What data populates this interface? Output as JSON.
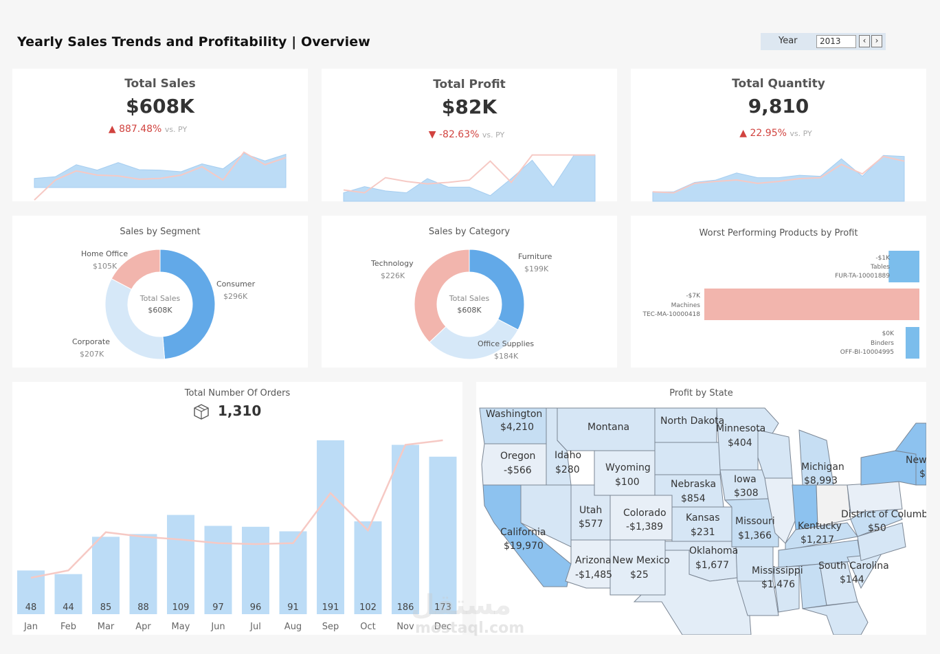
{
  "header": {
    "title": "Yearly Sales Trends and Profitability | Overview",
    "year_label": "Year",
    "year_value": "2013",
    "prev_icon": "chevron-left-icon",
    "next_icon": "chevron-right-icon"
  },
  "kpis": [
    {
      "title": "Total Sales",
      "value": "$608K",
      "arrow": "▲",
      "delta": "887.48%",
      "vs": "vs. PY",
      "area": [
        0.22,
        0.26,
        0.55,
        0.42,
        0.6,
        0.43,
        0.42,
        0.38,
        0.57,
        0.45,
        0.82,
        0.64,
        0.8
      ],
      "line": [
        -0.3,
        0.18,
        0.4,
        0.3,
        0.28,
        0.2,
        0.22,
        0.3,
        0.5,
        0.18,
        0.85,
        0.55,
        0.72
      ]
    },
    {
      "title": "Total Profit",
      "value": "$82K",
      "arrow": "▼",
      "delta": "-82.63%",
      "vs": "vs. PY",
      "area": [
        0.18,
        0.31,
        0.22,
        0.18,
        0.48,
        0.3,
        0.3,
        0.12,
        0.48,
        0.87,
        0.3,
        0.98,
        0.98
      ],
      "line": [
        0.24,
        0.18,
        0.5,
        0.42,
        0.37,
        0.4,
        0.45,
        0.85,
        0.4,
        0.98,
        0.98,
        0.98,
        0.98
      ]
    },
    {
      "title": "Total Quantity",
      "value": "9,810",
      "arrow": "▲",
      "delta": "22.95%",
      "vs": "vs. PY",
      "area": [
        0.2,
        0.2,
        0.4,
        0.45,
        0.6,
        0.5,
        0.5,
        0.55,
        0.53,
        0.9,
        0.53,
        0.97,
        0.95
      ],
      "line": [
        0.2,
        0.18,
        0.38,
        0.42,
        0.45,
        0.38,
        0.42,
        0.48,
        0.5,
        0.78,
        0.58,
        0.95,
        0.85
      ]
    }
  ],
  "segment_chart": {
    "title": "Sales by Segment",
    "center_label": "Total Sales",
    "center_value": "$608K",
    "slices": [
      {
        "name": "Consumer",
        "value": "$296K",
        "num": 296,
        "color": "#62a9e8"
      },
      {
        "name": "Corporate",
        "value": "$207K",
        "num": 207,
        "color": "#d6e8f8"
      },
      {
        "name": "Home Office",
        "value": "$105K",
        "num": 105,
        "color": "#f2b5ad"
      }
    ]
  },
  "category_chart": {
    "title": "Sales by Category",
    "center_label": "Total Sales",
    "center_value": "$608K",
    "slices": [
      {
        "name": "Furniture",
        "value": "$199K",
        "num": 199,
        "color": "#62a9e8"
      },
      {
        "name": "Office Supplies",
        "value": "$184K",
        "num": 184,
        "color": "#d6e8f8"
      },
      {
        "name": "Technology",
        "value": "$226K",
        "num": 226,
        "color": "#f2b5ad"
      }
    ]
  },
  "worst_products": {
    "title": "Worst Performing Products by Profit",
    "items": [
      {
        "profit": "-$1K",
        "name": "Tables",
        "id": "FUR-TA-10001889",
        "num": -1,
        "color": "#7bbdec"
      },
      {
        "profit": "-$7K",
        "name": "Machines",
        "id": "TEC-MA-10000418",
        "num": -7,
        "color": "#f2b5ad"
      },
      {
        "profit": "$0K",
        "name": "Binders",
        "id": "OFF-BI-10004995",
        "num": 0,
        "color": "#7bbdec"
      }
    ]
  },
  "orders": {
    "title": "Total Number Of Orders",
    "total": "1,310",
    "icon": "box-icon"
  },
  "chart_data": {
    "type": "bar",
    "title": "Total Number Of Orders",
    "categories": [
      "Jan",
      "Feb",
      "Mar",
      "Apr",
      "May",
      "Jun",
      "Jul",
      "Aug",
      "Sep",
      "Oct",
      "Nov",
      "Dec"
    ],
    "series": [
      {
        "values": [
          48,
          44,
          85,
          88,
          109,
          97,
          96,
          91,
          191,
          102,
          186,
          173
        ]
      },
      {
        "values": [
          40,
          48,
          90,
          85,
          82,
          78,
          77,
          78,
          133,
          92,
          186,
          191
        ]
      }
    ],
    "ylim": [
      0,
      200
    ]
  },
  "map": {
    "title": "Profit by State",
    "states": [
      {
        "name": "Washington",
        "value": "$4,210"
      },
      {
        "name": "Montana",
        "value": ""
      },
      {
        "name": "North Dakota",
        "value": ""
      },
      {
        "name": "Minnesota",
        "value": "$404"
      },
      {
        "name": "Oregon",
        "value": "-$566"
      },
      {
        "name": "Idaho",
        "value": "$280"
      },
      {
        "name": "Wyoming",
        "value": "$100"
      },
      {
        "name": "Michigan",
        "value": "$8,993"
      },
      {
        "name": "New H",
        "value": "$"
      },
      {
        "name": "Nebraska",
        "value": "$854"
      },
      {
        "name": "Iowa",
        "value": "$308"
      },
      {
        "name": "Utah",
        "value": "$577"
      },
      {
        "name": "Colorado",
        "value": "-$1,389"
      },
      {
        "name": "Kansas",
        "value": "$231"
      },
      {
        "name": "Missouri",
        "value": "$1,366"
      },
      {
        "name": "District of Columbia",
        "value": "$50"
      },
      {
        "name": "Kentucky",
        "value": "$1,217"
      },
      {
        "name": "California",
        "value": "$19,970"
      },
      {
        "name": "Oklahoma",
        "value": "$1,677"
      },
      {
        "name": "Arizona",
        "value": "-$1,485"
      },
      {
        "name": "New Mexico",
        "value": "$25"
      },
      {
        "name": "Mississippi",
        "value": "$1,476"
      },
      {
        "name": "South Carolina",
        "value": "$144"
      }
    ]
  },
  "watermark": {
    "arabic": "مستقل",
    "latin": "mostaql.com"
  }
}
